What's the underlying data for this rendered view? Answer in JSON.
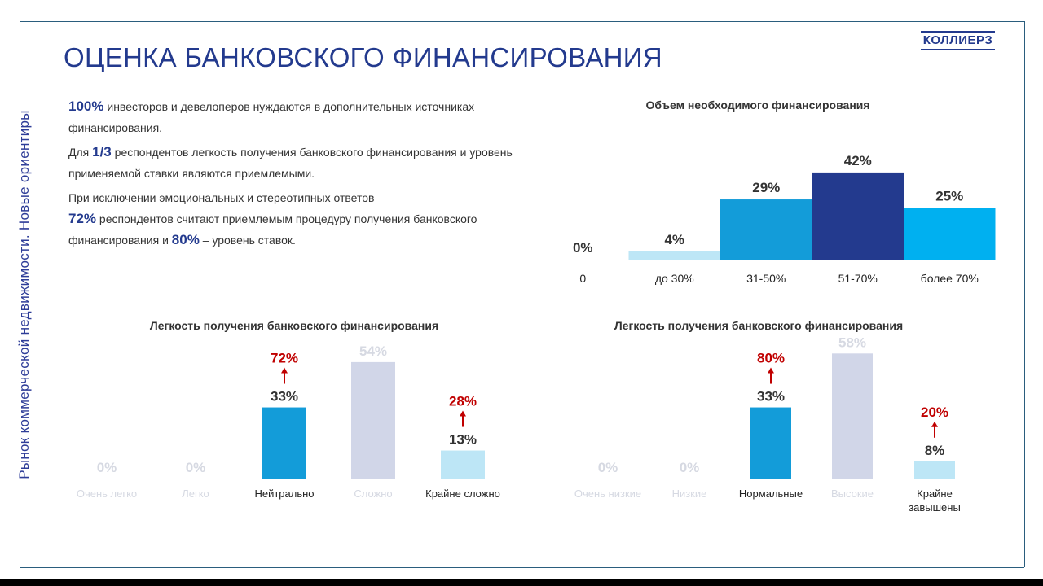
{
  "page": {
    "title": "ОЦЕНКА БАНКОВСКОГО ФИНАНСИРОВАНИЯ",
    "side_title": "Рынок коммерческой недвижимости. Новые ориентиры",
    "logo_text": "КОЛЛИЕРЗ"
  },
  "intro": {
    "p1": {
      "hl": "100%",
      "text": " инвесторов и девелоперов нуждаются в дополнительных источниках финансирования."
    },
    "p2": {
      "pre": "Для ",
      "hl": "1/3",
      "text": " респондентов легкость получения банковского финансирования и уровень применяемой ставки являются приемлемыми."
    },
    "p3": {
      "line1": "При исключении эмоциональных и стереотипных ответов",
      "hl1": "72%",
      "mid": " респондентов считают  приемлемым процедуру получения банковского финансирования и ",
      "hl2": "80%",
      "end": " – уровень ставок."
    }
  },
  "chart_data": [
    {
      "type": "bar",
      "title": "Объем необходимого финансирования",
      "categories": [
        "0",
        "до 30%",
        "31-50%",
        "51-70%",
        "более 70%"
      ],
      "values": [
        0,
        4,
        29,
        42,
        25
      ],
      "value_labels": [
        "0%",
        "4%",
        "29%",
        "42%",
        "25%"
      ],
      "colors": [
        "#ffffff",
        "#bde6f6",
        "#139cd9",
        "#233a8e",
        "#00b0f0"
      ]
    },
    {
      "type": "bar",
      "title": "Легкость получения банковского финансирования",
      "categories": [
        "Очень легко",
        "Легко",
        "Нейтрально",
        "Сложно",
        "Крайне сложно"
      ],
      "values": [
        0,
        0,
        33,
        54,
        13
      ],
      "value_labels": [
        "0%",
        "0%",
        "33%",
        "54%",
        "13%"
      ],
      "colors": [
        "#139cd9",
        "#139cd9",
        "#139cd9",
        "#d1d6e8",
        "#bde6f6"
      ],
      "faded": [
        true,
        true,
        false,
        true,
        false
      ],
      "annotations": [
        {
          "index": 2,
          "label": "72%"
        },
        {
          "index": 4,
          "label": "28%"
        }
      ]
    },
    {
      "type": "bar",
      "title": "Легкость получения банковского финансирования",
      "categories": [
        "Очень низкие",
        "Низкие",
        "Нормальные",
        "Высокие",
        "Крайне завышены"
      ],
      "values": [
        0,
        0,
        33,
        58,
        8
      ],
      "value_labels": [
        "0%",
        "0%",
        "33%",
        "58%",
        "8%"
      ],
      "colors": [
        "#139cd9",
        "#139cd9",
        "#139cd9",
        "#d1d6e8",
        "#bde6f6"
      ],
      "faded": [
        true,
        true,
        false,
        true,
        false
      ],
      "annotations": [
        {
          "index": 2,
          "label": "80%"
        },
        {
          "index": 4,
          "label": "20%"
        }
      ]
    }
  ],
  "colors": {
    "title": "#233a8e",
    "annotation": "#c00000",
    "faded_text": "#d6d9e2",
    "label_text": "#333333"
  }
}
